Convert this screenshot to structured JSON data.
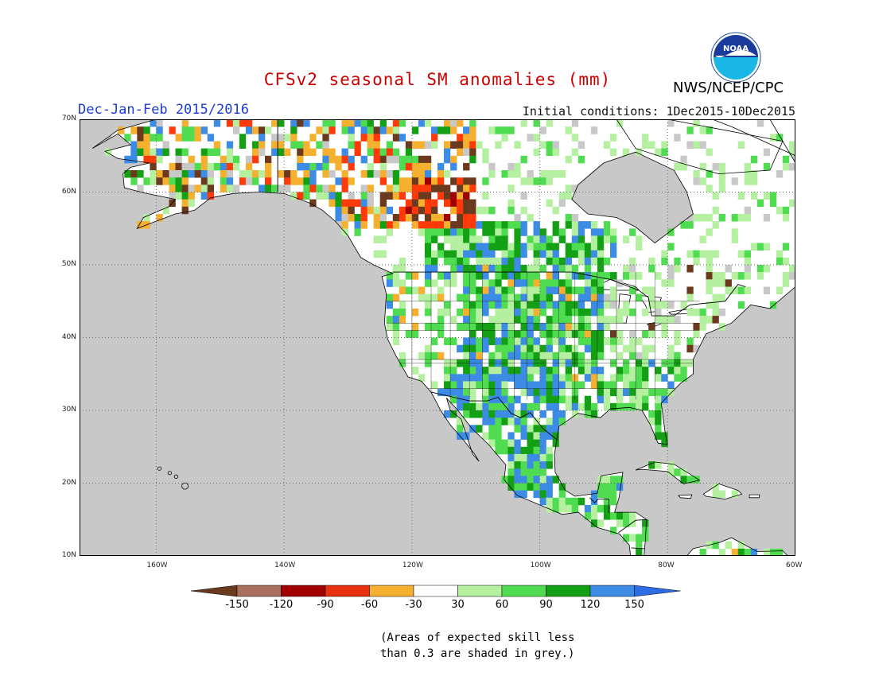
{
  "title": "CFSv2 seasonal SM anomalies (mm)",
  "subtitle": "Dec-Jan-Feb 2015/2016",
  "initial_conditions": "Initial conditions: 1Dec2015-10Dec2015",
  "agency": "NWS/NCEP/CPC",
  "logo_text": "NOAA",
  "map": {
    "lat_labels": [
      "70N",
      "60N",
      "50N",
      "40N",
      "30N",
      "20N",
      "10N"
    ],
    "lon_labels": [
      "160W",
      "140W",
      "120W",
      "100W",
      "80W",
      "60W"
    ],
    "land_color": "#ffffff",
    "ocean_color": "#c8c8c8"
  },
  "legend": {
    "tick_labels": [
      "-150",
      "-120",
      "-90",
      "-60",
      "-30",
      "30",
      "60",
      "90",
      "120",
      "150"
    ],
    "colors": [
      "#6b3a1e",
      "#a97060",
      "#a00000",
      "#e63010",
      "#ff4500",
      "#f5b030",
      "#ffffff",
      "#b4f0a0",
      "#50dc50",
      "#14a014",
      "#3c8ce6",
      "#2d6ee6"
    ],
    "note_line1": "(Areas of expected skill less",
    "note_line2": "than 0.3 are shaded in grey.)"
  },
  "colors": {
    "title": "#cc0000",
    "subtitle": "#1a3cd6",
    "brown": "#6b3a1e",
    "rosybrown": "#a97060",
    "darkred": "#a00000",
    "red": "#ff3a0a",
    "orange": "#f5b030",
    "white": "#ffffff",
    "lightgreen": "#b4f0a0",
    "green": "#50dc50",
    "darkgreen": "#14a014",
    "blue": "#3c8ce6",
    "grey": "#c8c8c8"
  }
}
